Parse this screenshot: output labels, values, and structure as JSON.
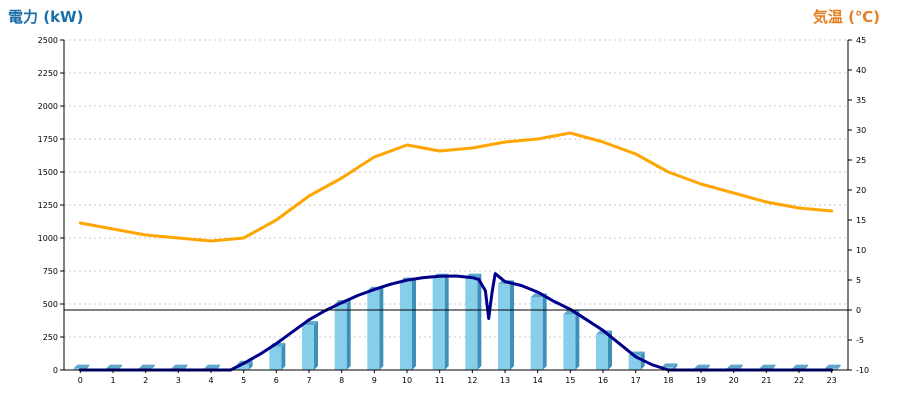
{
  "chart_data": {
    "type": "bar",
    "left_axis_title": "電力 (kW)",
    "right_axis_title": "気温 (℃)",
    "categories": [
      "0",
      "1",
      "2",
      "3",
      "4",
      "5",
      "6",
      "7",
      "8",
      "9",
      "10",
      "11",
      "12",
      "13",
      "14",
      "15",
      "16",
      "17",
      "18",
      "19",
      "20",
      "21",
      "22",
      "23"
    ],
    "y_left": {
      "min": 0,
      "max": 2500,
      "ticks": [
        "0",
        "250",
        "500",
        "750",
        "1000",
        "1250",
        "1500",
        "1750",
        "2000",
        "2250",
        "2500"
      ]
    },
    "y_right": {
      "min": -10,
      "max": 45,
      "ticks": [
        "-10",
        "-5",
        "0",
        "5",
        "10",
        "15",
        "20",
        "25",
        "30",
        "35",
        "40",
        "45"
      ]
    },
    "grid": true,
    "zero_line_temperature": 0,
    "series": [
      {
        "kind": "bar",
        "axis": "left",
        "color": "#87ceeb",
        "values": [
          10,
          10,
          10,
          10,
          10,
          40,
          175,
          340,
          500,
          600,
          670,
          700,
          700,
          650,
          550,
          420,
          270,
          110,
          20,
          10,
          10,
          10,
          10,
          10
        ]
      },
      {
        "kind": "line",
        "axis": "left",
        "color": "#00008b",
        "points": [
          [
            0,
            0
          ],
          [
            1,
            0
          ],
          [
            2,
            0
          ],
          [
            3,
            0
          ],
          [
            4,
            0
          ],
          [
            4.6,
            0
          ],
          [
            5,
            50
          ],
          [
            5.5,
            120
          ],
          [
            6,
            200
          ],
          [
            6.5,
            290
          ],
          [
            7,
            380
          ],
          [
            7.5,
            450
          ],
          [
            8,
            510
          ],
          [
            8.5,
            565
          ],
          [
            9,
            610
          ],
          [
            9.5,
            650
          ],
          [
            10,
            680
          ],
          [
            10.5,
            700
          ],
          [
            11,
            710
          ],
          [
            11.5,
            712
          ],
          [
            12,
            700
          ],
          [
            12.2,
            685
          ],
          [
            12.4,
            600
          ],
          [
            12.5,
            390
          ],
          [
            12.6,
            580
          ],
          [
            12.7,
            730
          ],
          [
            12.9,
            690
          ],
          [
            13,
            670
          ],
          [
            13.5,
            640
          ],
          [
            14,
            590
          ],
          [
            14.5,
            520
          ],
          [
            15,
            460
          ],
          [
            15.5,
            380
          ],
          [
            16,
            300
          ],
          [
            16.5,
            200
          ],
          [
            17,
            100
          ],
          [
            17.5,
            40
          ],
          [
            18,
            0
          ],
          [
            19,
            0
          ],
          [
            20,
            0
          ],
          [
            21,
            0
          ],
          [
            22,
            0
          ],
          [
            23,
            0
          ]
        ]
      },
      {
        "kind": "line",
        "axis": "right",
        "color": "#ffa500",
        "values": [
          14.5,
          13.5,
          12.5,
          12.0,
          11.5,
          12.0,
          15.0,
          19.0,
          22.0,
          25.5,
          27.5,
          26.5,
          27.0,
          28.0,
          28.5,
          29.5,
          28.0,
          26.0,
          23.0,
          21.0,
          19.5,
          18.0,
          17.0,
          16.5
        ]
      }
    ]
  }
}
